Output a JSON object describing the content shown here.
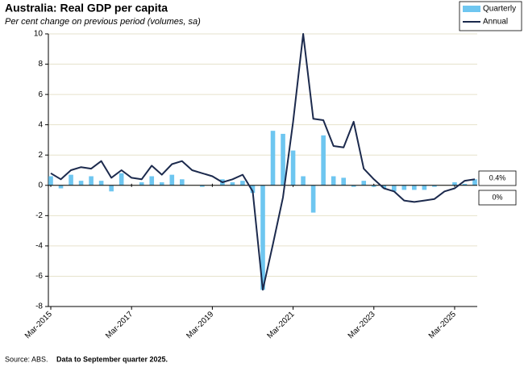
{
  "chart_data": {
    "type": "bar_line",
    "title": "Australia: Real GDP per capita",
    "subtitle": "Per cent change on previous period (volumes, sa)",
    "source": "Source: ABS.",
    "source_note": "Data to September quarter 2025.",
    "categories": [
      "Mar-2015",
      null,
      null,
      null,
      null,
      null,
      null,
      null,
      "Mar-2017",
      null,
      null,
      null,
      null,
      null,
      null,
      null,
      "Mar-2019",
      null,
      null,
      null,
      null,
      null,
      null,
      null,
      "Mar-2021",
      null,
      null,
      null,
      null,
      null,
      null,
      null,
      "Mar-2023",
      null,
      null,
      null,
      null,
      null,
      null,
      null,
      "Mar-2025",
      null,
      null
    ],
    "series": [
      {
        "name": "Quarterly",
        "type": "bar",
        "color": "#6ec6f0",
        "values": [
          0.6,
          -0.2,
          0.7,
          0.3,
          0.6,
          0.3,
          -0.4,
          0.8,
          0.0,
          0.2,
          0.6,
          0.2,
          0.7,
          0.4,
          0.0,
          -0.1,
          0.0,
          0.4,
          0.2,
          0.3,
          -0.5,
          -6.9,
          3.6,
          3.4,
          2.3,
          0.6,
          -1.8,
          3.3,
          0.6,
          0.5,
          -0.1,
          0.3,
          -0.1,
          -0.2,
          -0.4,
          -0.3,
          -0.3,
          -0.3,
          -0.1,
          0.0,
          0.2,
          0.1,
          0.4
        ]
      },
      {
        "name": "Annual",
        "type": "line",
        "color": "#1c2a4d",
        "values": [
          0.8,
          0.4,
          1.0,
          1.2,
          1.1,
          1.6,
          0.5,
          1.0,
          0.5,
          0.4,
          1.3,
          0.7,
          1.4,
          1.6,
          1.0,
          0.8,
          0.6,
          0.2,
          0.4,
          0.7,
          -0.4,
          -6.9,
          -3.9,
          -0.8,
          4.2,
          10.0,
          4.4,
          4.3,
          2.6,
          2.5,
          4.2,
          1.1,
          0.4,
          -0.2,
          -0.4,
          -1.0,
          -1.1,
          -1.0,
          -0.9,
          -0.4,
          -0.2,
          0.3,
          0.4
        ]
      }
    ],
    "annotations": [
      "0.4%",
      "0%"
    ],
    "ylim": [
      -8,
      10
    ],
    "yticks": [
      -8,
      -6,
      -4,
      -2,
      0,
      2,
      4,
      6,
      8,
      10
    ],
    "grid": true,
    "legend": "top-right"
  }
}
